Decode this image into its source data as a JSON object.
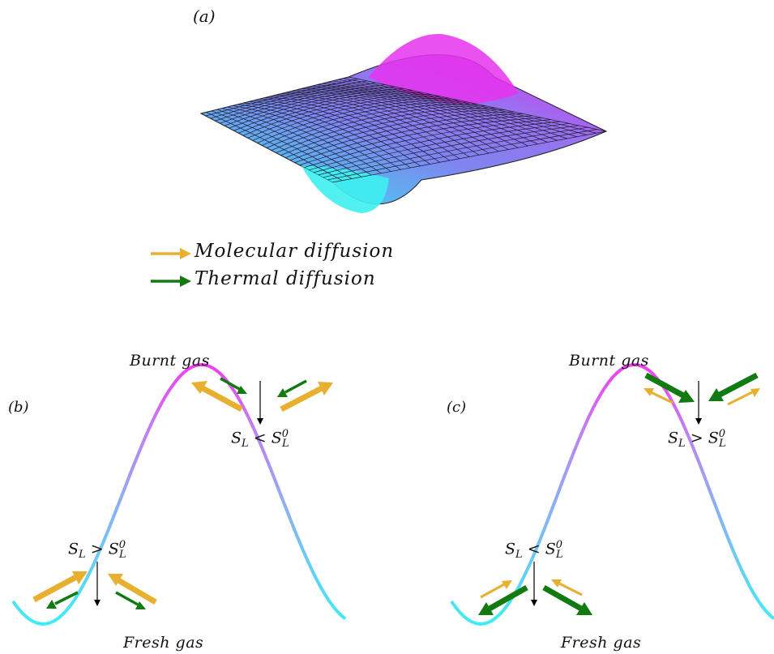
{
  "panel_a": {
    "label": "(a)"
  },
  "legend": {
    "items": [
      {
        "text": "Molecular diffusion",
        "color": "#e8b030"
      },
      {
        "text": "Thermal diffusion",
        "color": "#117a11"
      }
    ]
  },
  "panel_b": {
    "label": "(b)",
    "top_text": "Burnt gas",
    "bottom_text": "Fresh gas",
    "crest_relation": {
      "base": "S",
      "sub": "L",
      "op": "<",
      "base2": "S",
      "sub2": "L",
      "sup2": "0"
    },
    "trough_relation": {
      "base": "S",
      "sub": "L",
      "op": ">",
      "base2": "S",
      "sub2": "L",
      "sup2": "0"
    }
  },
  "panel_c": {
    "label": "(c)",
    "top_text": "Burnt gas",
    "bottom_text": "Fresh gas",
    "crest_relation": {
      "base": "S",
      "sub": "L",
      "op": ">",
      "base2": "S",
      "sub2": "L",
      "sup2": "0"
    },
    "trough_relation": {
      "base": "S",
      "sub": "L",
      "op": "<",
      "base2": "S",
      "sub2": "L",
      "sup2": "0"
    }
  },
  "colors": {
    "molecular": "#e8b030",
    "thermal": "#117a11",
    "surface_high": "#f020f0",
    "surface_mid": "#8a7af0",
    "surface_low": "#30f0f0",
    "curve_low": "#40e8f0",
    "curve_high": "#f040f0"
  }
}
